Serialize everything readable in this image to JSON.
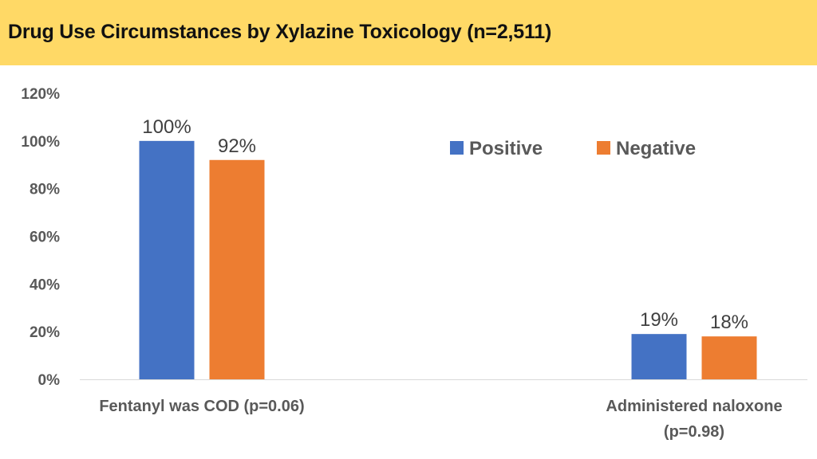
{
  "header": {
    "title": "Drug Use Circumstances by Xylazine Toxicology (n=2,511)",
    "background_color": "#FFD966"
  },
  "chart_data": {
    "type": "bar",
    "title": "Drug Use Circumstances by Xylazine Toxicology (n=2,511)",
    "categories": [
      [
        "Fentanyl was COD (p=0.06)"
      ],
      [
        "Administered naloxone",
        "(p=0.98)"
      ]
    ],
    "series": [
      {
        "name": "Positive",
        "values": [
          100,
          19
        ],
        "labels": [
          "100%",
          "19%"
        ],
        "color": "#4472C4"
      },
      {
        "name": "Negative",
        "values": [
          92,
          18
        ],
        "labels": [
          "92%",
          "18%"
        ],
        "color": "#ED7D31"
      }
    ],
    "y_ticks": [
      {
        "value": 0,
        "label": "0%"
      },
      {
        "value": 20,
        "label": "20%"
      },
      {
        "value": 40,
        "label": "40%"
      },
      {
        "value": 60,
        "label": "60%"
      },
      {
        "value": 80,
        "label": "80%"
      },
      {
        "value": 100,
        "label": "100%"
      },
      {
        "value": 120,
        "label": "120%"
      }
    ],
    "ylim": [
      0,
      120
    ],
    "grid": false,
    "legend_position": "top-right"
  }
}
